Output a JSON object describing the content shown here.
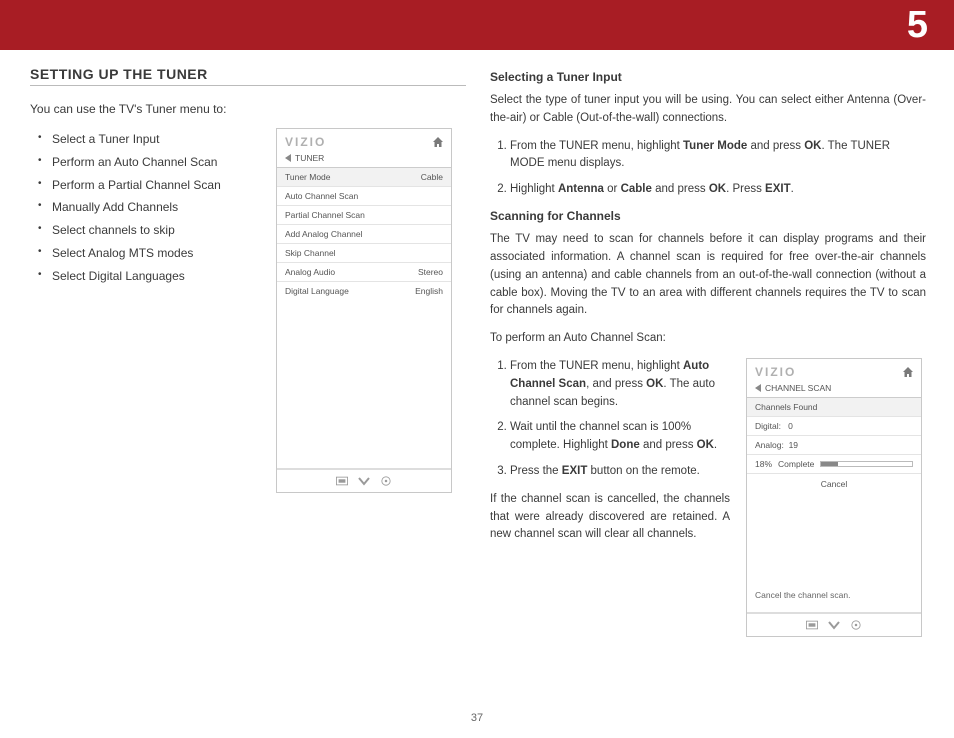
{
  "chapter_number": "5",
  "page_number": "37",
  "section_title": "SETTING UP THE TUNER",
  "intro": "You can use the TV's Tuner menu to:",
  "bullets": [
    "Select a Tuner Input",
    "Perform an Auto Channel Scan",
    "Perform a Partial Channel Scan",
    "Manually Add Channels",
    "Select channels to skip",
    "Select Analog MTS modes",
    "Select Digital Languages"
  ],
  "right": {
    "h1": "Selecting a Tuner Input",
    "p1": "Select the type of tuner input you will be using. You can select either Antenna (Over-the-air) or Cable (Out-of-the-wall) connections.",
    "steps1": [
      "From the TUNER menu, highlight <b>Tuner Mode</b> and press <b>OK</b>. The TUNER MODE menu displays.",
      "Highlight <b>Antenna</b> or <b>Cable</b> and press <b>OK</b>. Press <b>EXIT</b>."
    ],
    "h2": "Scanning for Channels",
    "p2": "The TV may need to scan for channels before it can display programs and their associated information. A channel scan is required for free over-the-air channels (using an antenna) and cable channels from an out-of-the-wall connection (without a cable box). Moving the TV to an area with different channels requires the TV to scan for channels again.",
    "p3": "To perform an Auto Channel Scan:",
    "steps2": [
      "From the TUNER menu, highlight <b>Auto Channel Scan</b>, and press <b>OK</b>. The auto channel scan begins.",
      "Wait until the channel scan is 100% complete. Highlight <b>Done</b> and press <b>OK</b>.",
      "Press the <b>EXIT</b> button on the remote."
    ],
    "p4": "If the channel scan is cancelled, the channels that were already discovered are retained. A new channel scan will clear all channels."
  },
  "panel1": {
    "logo": "VIZIO",
    "crumb": "TUNER",
    "rows": [
      {
        "label": "Tuner Mode",
        "value": "Cable"
      },
      {
        "label": "Auto Channel Scan",
        "value": ""
      },
      {
        "label": "Partial Channel Scan",
        "value": ""
      },
      {
        "label": "Add Analog Channel",
        "value": ""
      },
      {
        "label": "Skip Channel",
        "value": ""
      },
      {
        "label": "Analog Audio",
        "value": "Stereo"
      },
      {
        "label": "Digital Language",
        "value": "English"
      }
    ]
  },
  "panel2": {
    "logo": "VIZIO",
    "crumb": "CHANNEL SCAN",
    "head_row": "Channels Found",
    "digital_label": "Digital:",
    "digital_value": "0",
    "analog_label": "Analog:",
    "analog_value": "19",
    "percent": "18%",
    "complete_label": "Complete",
    "progress_percent": 18,
    "cancel": "Cancel",
    "hint": "Cancel the channel scan."
  },
  "colors": {
    "red": "#a81d24",
    "text": "#3a3a3a",
    "panel_border": "#c8c8c8"
  }
}
